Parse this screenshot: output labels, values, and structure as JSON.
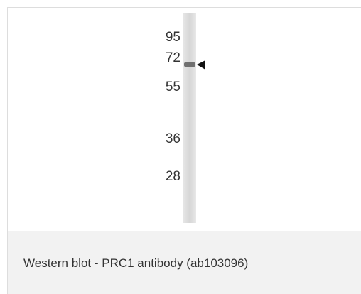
{
  "figure": {
    "markers": [
      "95",
      "72",
      "55",
      "36",
      "28"
    ],
    "caption": "Western blot - PRC1 antibody (ab103096)"
  }
}
